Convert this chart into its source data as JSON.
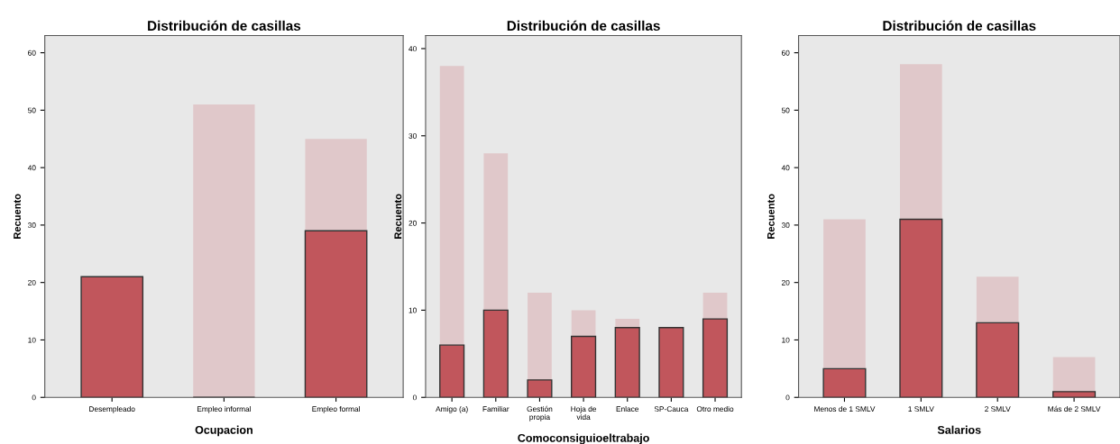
{
  "chart_data": [
    {
      "type": "bar",
      "title": "Distribución de casillas",
      "xlabel": "Ocupacion",
      "ylabel": "Recuento",
      "categories": [
        "Desempleado",
        "Empleo informal",
        "Empleo formal"
      ],
      "stacked": true,
      "ylim": [
        0,
        63
      ],
      "yticks": [
        0,
        10,
        20,
        30,
        40,
        50,
        60
      ],
      "grid": false,
      "series": [
        {
          "color": "#c1565c",
          "values": [
            21,
            0,
            29
          ]
        },
        {
          "color": "#e0c8ca",
          "values": [
            0,
            51,
            16
          ]
        }
      ]
    },
    {
      "type": "bar",
      "title": "Distribución de casillas",
      "xlabel": "Comoconsiguioeltrabajo",
      "ylabel": "Recuento",
      "categories": [
        "Amigo (a)",
        "Familiar",
        "Gestión\npropia",
        "Hoja de\nvida",
        "Enlace",
        "SP-Cauca",
        "Otro medio"
      ],
      "stacked": true,
      "ylim": [
        0,
        41.5
      ],
      "yticks": [
        0,
        10,
        20,
        30,
        40
      ],
      "grid": false,
      "series": [
        {
          "color": "#c1565c",
          "values": [
            6,
            10,
            2,
            7,
            8,
            8,
            9
          ]
        },
        {
          "color": "#e0c8ca",
          "values": [
            32,
            18,
            10,
            3,
            1,
            0,
            3
          ]
        }
      ]
    },
    {
      "type": "bar",
      "title": "Distribución de casillas",
      "xlabel": "Salarios",
      "ylabel": "Recuento",
      "categories": [
        "Menos de 1 SMLV",
        "1 SMLV",
        "2 SMLV",
        "Más de 2 SMLV"
      ],
      "stacked": true,
      "ylim": [
        0,
        63
      ],
      "yticks": [
        0,
        10,
        20,
        30,
        40,
        50,
        60
      ],
      "grid": false,
      "series": [
        {
          "color": "#c1565c",
          "values": [
            5,
            31,
            13,
            1
          ]
        },
        {
          "color": "#e0c8ca",
          "values": [
            26,
            27,
            8,
            6
          ]
        }
      ]
    }
  ]
}
